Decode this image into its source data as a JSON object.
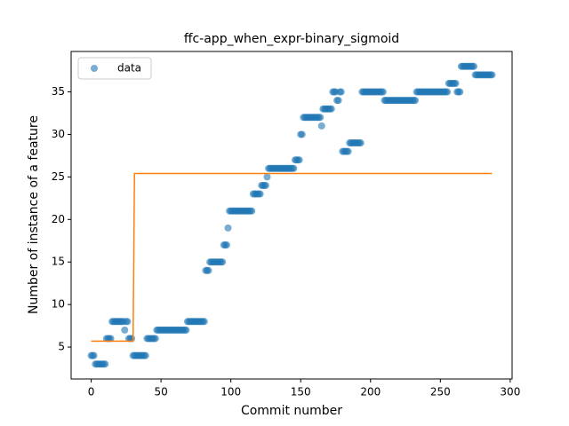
{
  "chart_data": {
    "type": "scatter",
    "title": "ffc-app_when_expr-binary_sigmoid",
    "x_label": "Commit number",
    "y_label": "Number of instance of a feature",
    "xlim": [
      -14.35,
      301.35
    ],
    "ylim": [
      1.25,
      39.75
    ],
    "xticks": [
      0,
      50,
      100,
      150,
      200,
      250,
      300
    ],
    "yticks": [
      5,
      10,
      15,
      20,
      25,
      30,
      35
    ],
    "legend": "upper left",
    "series": [
      {
        "name": "data",
        "color": "#1f77b4",
        "style": "points",
        "x": [
          0,
          1,
          2,
          3,
          4,
          5,
          6,
          7,
          8,
          9,
          10,
          11,
          12,
          13,
          14,
          15,
          16,
          17,
          18,
          19,
          20,
          21,
          22,
          23,
          24,
          25,
          26,
          27,
          28,
          29,
          30,
          31,
          32,
          33,
          34,
          35,
          36,
          37,
          38,
          39,
          40,
          41,
          42,
          43,
          44,
          45,
          46,
          47,
          48,
          49,
          50,
          51,
          52,
          53,
          54,
          55,
          56,
          57,
          58,
          59,
          60,
          61,
          62,
          63,
          64,
          65,
          66,
          67,
          68,
          69,
          70,
          71,
          72,
          73,
          74,
          75,
          76,
          77,
          78,
          79,
          80,
          81,
          82,
          83,
          84,
          85,
          86,
          87,
          88,
          89,
          90,
          91,
          92,
          93,
          94,
          95,
          96,
          97,
          98,
          99,
          100,
          101,
          102,
          103,
          104,
          105,
          106,
          107,
          108,
          109,
          110,
          111,
          112,
          113,
          114,
          115,
          116,
          117,
          118,
          119,
          120,
          121,
          122,
          123,
          124,
          125,
          126,
          127,
          128,
          129,
          130,
          131,
          132,
          133,
          134,
          135,
          136,
          137,
          138,
          139,
          140,
          141,
          142,
          143,
          144,
          145,
          146,
          147,
          148,
          149,
          150,
          151,
          152,
          153,
          154,
          155,
          156,
          157,
          158,
          159,
          160,
          161,
          162,
          163,
          164,
          165,
          166,
          167,
          168,
          169,
          170,
          171,
          172,
          173,
          174,
          175,
          176,
          177,
          178,
          179,
          180,
          181,
          182,
          183,
          184,
          185,
          186,
          187,
          188,
          189,
          190,
          191,
          192,
          193,
          194,
          195,
          196,
          197,
          198,
          199,
          200,
          201,
          202,
          203,
          204,
          205,
          206,
          207,
          208,
          209,
          210,
          211,
          212,
          213,
          214,
          215,
          216,
          217,
          218,
          219,
          220,
          221,
          222,
          223,
          224,
          225,
          226,
          227,
          228,
          229,
          230,
          231,
          232,
          233,
          234,
          235,
          236,
          237,
          238,
          239,
          240,
          241,
          242,
          243,
          244,
          245,
          246,
          247,
          248,
          249,
          250,
          251,
          252,
          253,
          254,
          255,
          256,
          257,
          258,
          259,
          260,
          261,
          262,
          263,
          264,
          265,
          266,
          267,
          268,
          269,
          270,
          271,
          272,
          273,
          274,
          275,
          276,
          277,
          278,
          279,
          280,
          281,
          282,
          283,
          284,
          285,
          286,
          287
        ],
        "values": [
          4,
          4,
          4,
          3,
          3,
          3,
          3,
          3,
          3,
          3,
          3,
          6,
          6,
          6,
          6,
          8,
          8,
          8,
          8,
          8,
          8,
          8,
          8,
          8,
          7,
          8,
          8,
          6,
          6,
          6,
          4,
          4,
          4,
          4,
          4,
          4,
          4,
          4,
          4,
          4,
          6,
          6,
          6,
          6,
          6,
          6,
          6,
          7,
          7,
          7,
          7,
          7,
          7,
          7,
          7,
          7,
          7,
          7,
          7,
          7,
          7,
          7,
          7,
          7,
          7,
          7,
          7,
          7,
          7,
          8,
          8,
          8,
          8,
          8,
          8,
          8,
          8,
          8,
          8,
          8,
          8,
          8,
          14,
          14,
          14,
          15,
          15,
          15,
          15,
          15,
          15,
          15,
          15,
          15,
          15,
          17,
          17,
          17,
          19,
          21,
          21,
          21,
          21,
          21,
          21,
          21,
          21,
          21,
          21,
          21,
          21,
          21,
          21,
          21,
          21,
          21,
          23,
          23,
          23,
          23,
          23,
          23,
          24,
          24,
          24,
          24,
          25,
          26,
          26,
          26,
          26,
          26,
          26,
          26,
          26,
          26,
          26,
          26,
          26,
          26,
          26,
          26,
          26,
          26,
          26,
          26,
          27,
          27,
          27,
          27,
          30,
          30,
          32,
          32,
          32,
          32,
          32,
          32,
          32,
          32,
          32,
          32,
          32,
          32,
          32,
          31,
          33,
          33,
          33,
          33,
          33,
          33,
          33,
          35,
          35,
          35,
          34,
          34,
          35,
          35,
          28,
          28,
          28,
          28,
          28,
          29,
          29,
          29,
          29,
          29,
          29,
          29,
          29,
          29,
          35,
          35,
          35,
          35,
          35,
          35,
          35,
          35,
          35,
          35,
          35,
          35,
          35,
          35,
          35,
          35,
          34,
          34,
          34,
          34,
          34,
          34,
          34,
          34,
          34,
          34,
          34,
          34,
          34,
          34,
          34,
          34,
          34,
          34,
          34,
          34,
          34,
          34,
          34,
          35,
          35,
          35,
          35,
          35,
          35,
          35,
          35,
          35,
          35,
          35,
          35,
          35,
          35,
          35,
          35,
          35,
          35,
          35,
          35,
          35,
          35,
          35,
          36,
          36,
          36,
          36,
          36,
          36,
          35,
          35,
          35,
          38,
          38,
          38,
          38,
          38,
          38,
          38,
          38,
          38,
          38,
          37,
          37,
          37,
          37,
          37,
          37,
          37,
          37,
          37,
          37,
          37,
          37,
          37
        ]
      },
      {
        "color": "#ff7f0e",
        "style": "line",
        "x": [
          0,
          30,
          31,
          287
        ],
        "values": [
          5.7,
          5.7,
          25.4,
          25.4
        ]
      }
    ]
  }
}
